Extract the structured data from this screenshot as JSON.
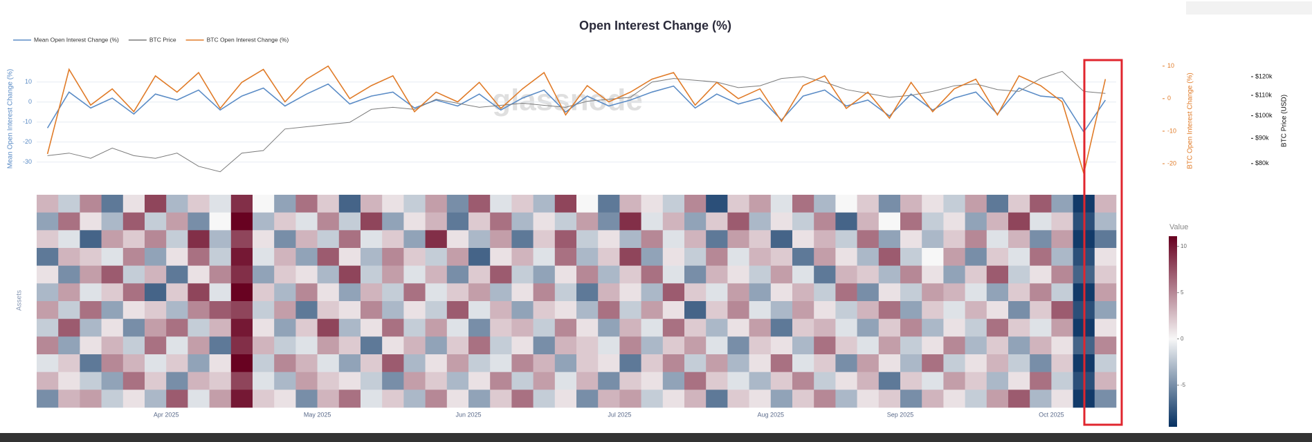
{
  "chart_data": [
    {
      "type": "line",
      "title": "Open Interest Change (%)",
      "watermark": "glassnode",
      "ylabel": "Mean Open Interest Change (%)",
      "y2label": "BTC Open Interest Change (%)",
      "y3label": "BTC Price (USD)",
      "ylim": [
        -36.7,
        19.6
      ],
      "yticks": [
        -30,
        -20,
        -10,
        0,
        10
      ],
      "y2lim": [
        -23.6,
        11
      ],
      "y2ticks": [
        -20,
        -10,
        0,
        10
      ],
      "y3lim": [
        75700,
        128000
      ],
      "y3log": true,
      "y3ticks": [
        {
          "value": 80000,
          "label": "$80k"
        },
        {
          "value": 90000,
          "label": "$90k"
        },
        {
          "value": 100000,
          "label": "$100k"
        },
        {
          "value": 110000,
          "label": "$110k"
        },
        {
          "value": 120000,
          "label": "$120k"
        }
      ],
      "grid": true,
      "series": [
        {
          "name": "Mean Open Interest Change (%)",
          "color": "#5b8cc6",
          "axis": "y",
          "values": [
            -13,
            5,
            -3,
            2,
            -6,
            4,
            1,
            6,
            -4,
            3,
            7,
            -2,
            4,
            9,
            -1,
            3,
            5,
            -3,
            1,
            -2,
            4,
            -4,
            2,
            6,
            -5,
            3,
            -2,
            1,
            5,
            8,
            -3,
            4,
            -1,
            2,
            -9,
            3,
            6,
            -2,
            1,
            -7,
            4,
            -4,
            2,
            5,
            -6,
            7,
            3,
            2,
            -15,
            1
          ]
        },
        {
          "name": "BTC Price",
          "color": "#7a7a7a",
          "axis": "y3",
          "values": [
            83000,
            84000,
            82000,
            86000,
            83000,
            82000,
            84000,
            79000,
            77000,
            84000,
            85000,
            94000,
            95000,
            96000,
            97000,
            103000,
            104000,
            103000,
            108000,
            106000,
            104000,
            105000,
            106000,
            105000,
            104000,
            107000,
            108000,
            109000,
            117000,
            119000,
            118000,
            117000,
            114000,
            115000,
            119000,
            120000,
            117000,
            113000,
            111000,
            109000,
            110000,
            112000,
            115000,
            116000,
            113000,
            112000,
            119000,
            123000,
            112000,
            111000
          ]
        },
        {
          "name": "BTC Open Interest Change (%)",
          "color": "#e07b28",
          "axis": "y2",
          "values": [
            -17,
            9,
            -2,
            3,
            -4,
            7,
            2,
            8,
            -3,
            5,
            9,
            -1,
            6,
            10,
            0,
            4,
            7,
            -4,
            2,
            -1,
            5,
            -3,
            3,
            8,
            -5,
            4,
            -1,
            2,
            6,
            8,
            -2,
            5,
            0,
            3,
            -7,
            4,
            7,
            -3,
            2,
            -6,
            5,
            -4,
            3,
            6,
            -5,
            7,
            4,
            -1,
            -23,
            6
          ]
        }
      ]
    },
    {
      "type": "heatmap",
      "ylabel": "Assets",
      "colorbar_title": "Value",
      "categories": [
        null,
        null,
        null,
        null,
        null,
        null,
        "Apr 2025",
        null,
        null,
        null,
        null,
        null,
        null,
        "May 2025",
        null,
        null,
        null,
        null,
        null,
        null,
        "Jun 2025",
        null,
        null,
        null,
        null,
        null,
        null,
        "Jul 2025",
        null,
        null,
        null,
        null,
        null,
        null,
        "Aug 2025",
        null,
        null,
        null,
        null,
        null,
        "Sep 2025",
        null,
        null,
        null,
        null,
        null,
        null,
        "Oct 2025",
        null,
        null
      ],
      "zlim": [
        -9.5,
        11.1
      ],
      "zticks": [
        -5,
        0,
        5,
        10
      ],
      "colors": {
        "low": "#053061",
        "mid": "#f7f7f7",
        "high": "#67001f"
      },
      "z": [
        [
          3,
          -2,
          5,
          -6,
          1,
          8,
          -3,
          2,
          -1,
          9,
          0,
          -4,
          6,
          2,
          -7,
          3,
          1,
          -2,
          4,
          -5,
          7,
          -1,
          2,
          -3,
          8,
          0,
          -6,
          3,
          1,
          -2,
          5,
          -8,
          2,
          4,
          -1,
          6,
          -3,
          0,
          2,
          -5,
          3,
          1,
          -2,
          4,
          -6,
          2,
          7,
          -4,
          -9,
          3
        ],
        [
          -4,
          6,
          1,
          -3,
          7,
          -2,
          4,
          -5,
          0,
          11,
          -3,
          2,
          -1,
          5,
          -2,
          8,
          -4,
          1,
          3,
          -6,
          2,
          6,
          -3,
          1,
          -2,
          4,
          -5,
          9,
          -1,
          3,
          -4,
          2,
          7,
          -3,
          1,
          -2,
          5,
          -7,
          3,
          0,
          6,
          -2,
          1,
          -4,
          3,
          8,
          -1,
          2,
          -8,
          -3
        ],
        [
          2,
          -1,
          -7,
          4,
          2,
          5,
          -2,
          9,
          -3,
          8,
          1,
          -5,
          3,
          -2,
          6,
          -1,
          2,
          -4,
          9,
          1,
          -3,
          4,
          -6,
          2,
          7,
          -2,
          1,
          -3,
          5,
          -1,
          3,
          -6,
          4,
          2,
          -7,
          1,
          3,
          -2,
          6,
          -4,
          1,
          -3,
          2,
          5,
          -1,
          3,
          -5,
          4,
          -9,
          -6
        ],
        [
          -6,
          3,
          2,
          -1,
          5,
          -4,
          1,
          6,
          -2,
          10,
          -1,
          3,
          -4,
          7,
          1,
          -3,
          5,
          2,
          -2,
          4,
          -7,
          1,
          3,
          -1,
          6,
          -3,
          2,
          8,
          -4,
          1,
          -2,
          5,
          -1,
          3,
          2,
          -6,
          4,
          1,
          -3,
          7,
          -2,
          0,
          4,
          -5,
          2,
          -1,
          6,
          -3,
          -8,
          1
        ],
        [
          1,
          -5,
          4,
          7,
          -2,
          3,
          -6,
          1,
          5,
          9,
          -4,
          2,
          1,
          -3,
          8,
          -2,
          4,
          -1,
          3,
          -5,
          2,
          7,
          -2,
          -4,
          1,
          5,
          -3,
          2,
          6,
          -1,
          -5,
          3,
          1,
          -2,
          4,
          -1,
          -6,
          3,
          2,
          -3,
          5,
          1,
          -4,
          2,
          7,
          -2,
          1,
          5,
          -7,
          2
        ],
        [
          -3,
          4,
          -1,
          2,
          6,
          -7,
          2,
          8,
          -1,
          11,
          2,
          -3,
          5,
          1,
          -4,
          3,
          -2,
          6,
          -1,
          2,
          4,
          -3,
          1,
          5,
          -2,
          -6,
          3,
          1,
          -3,
          7,
          2,
          -1,
          4,
          -4,
          1,
          3,
          -2,
          6,
          -5,
          1,
          -2,
          4,
          3,
          -1,
          -4,
          2,
          5,
          -2,
          -9,
          4
        ],
        [
          4,
          -2,
          6,
          -4,
          1,
          2,
          -3,
          5,
          7,
          8,
          -2,
          4,
          -6,
          2,
          1,
          5,
          -3,
          1,
          -2,
          7,
          -1,
          3,
          -4,
          2,
          1,
          -3,
          6,
          -2,
          4,
          1,
          -7,
          2,
          5,
          -1,
          -3,
          4,
          1,
          -2,
          3,
          6,
          -4,
          2,
          -1,
          3,
          1,
          -5,
          2,
          7,
          -8,
          -4
        ],
        [
          -2,
          7,
          -3,
          1,
          -5,
          4,
          6,
          -2,
          3,
          10,
          1,
          -4,
          2,
          8,
          -3,
          1,
          6,
          -2,
          4,
          -1,
          -5,
          2,
          3,
          -2,
          5,
          1,
          -4,
          3,
          -1,
          6,
          2,
          -3,
          1,
          4,
          -6,
          2,
          3,
          -1,
          -4,
          2,
          5,
          -3,
          1,
          -2,
          6,
          2,
          -1,
          4,
          -9,
          1
        ],
        [
          5,
          -4,
          1,
          3,
          -2,
          6,
          -1,
          4,
          -6,
          9,
          3,
          -2,
          -1,
          4,
          2,
          -6,
          1,
          3,
          -4,
          2,
          6,
          -2,
          1,
          -5,
          3,
          2,
          -1,
          5,
          -3,
          2,
          4,
          -1,
          -5,
          2,
          1,
          -3,
          6,
          2,
          -1,
          4,
          -2,
          1,
          5,
          -3,
          2,
          -4,
          3,
          1,
          -7,
          5
        ],
        [
          -1,
          2,
          -6,
          5,
          3,
          -1,
          2,
          -4,
          1,
          11,
          -2,
          5,
          3,
          -1,
          -4,
          2,
          7,
          -3,
          1,
          4,
          -2,
          -1,
          5,
          3,
          -4,
          2,
          1,
          -6,
          2,
          5,
          -2,
          4,
          -3,
          1,
          6,
          -1,
          2,
          -5,
          4,
          1,
          -3,
          6,
          -2,
          1,
          3,
          -2,
          -5,
          2,
          -9,
          -2
        ],
        [
          3,
          1,
          -2,
          -4,
          6,
          2,
          -5,
          3,
          2,
          8,
          -1,
          -3,
          4,
          2,
          1,
          -2,
          -5,
          4,
          2,
          -3,
          1,
          5,
          -2,
          4,
          -1,
          3,
          -5,
          2,
          1,
          -4,
          6,
          2,
          -1,
          -3,
          2,
          5,
          -2,
          1,
          3,
          -6,
          2,
          -1,
          4,
          2,
          -3,
          1,
          6,
          -2,
          -8,
          3
        ],
        [
          -5,
          3,
          4,
          -2,
          1,
          -3,
          7,
          -1,
          4,
          10,
          2,
          1,
          -5,
          3,
          6,
          -1,
          2,
          -3,
          5,
          1,
          -4,
          2,
          6,
          -2,
          1,
          -5,
          3,
          4,
          -2,
          1,
          3,
          -6,
          2,
          1,
          -4,
          2,
          5,
          -3,
          1,
          2,
          -5,
          3,
          1,
          -2,
          4,
          7,
          -3,
          1,
          -9,
          -5
        ]
      ]
    }
  ]
}
